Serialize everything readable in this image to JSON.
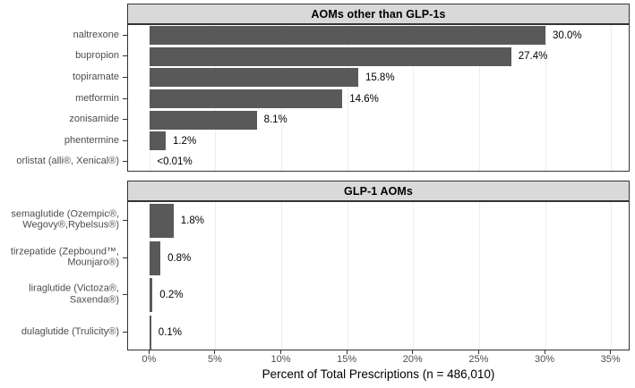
{
  "chart_data": {
    "type": "bar",
    "orientation": "horizontal",
    "xlabel": "Percent of Total Prescriptions (n = 486,010)",
    "xlim": [
      -1.65,
      36.45
    ],
    "x_ticks": [
      0,
      5,
      10,
      15,
      20,
      25,
      30,
      35
    ],
    "x_tick_labels": [
      "0%",
      "5%",
      "10%",
      "15%",
      "20%",
      "25%",
      "30%",
      "35%"
    ],
    "grid": "vertical-major-only",
    "legend": "none",
    "panels": [
      {
        "title": "AOMs other than GLP-1s",
        "categories": [
          "naltrexone",
          "bupropion",
          "topiramate",
          "metformin",
          "zonisamide",
          "phentermine",
          "orlistat (alli®, Xenical®)"
        ],
        "rows": [
          {
            "label_lines": [
              "naltrexone"
            ],
            "value": 30.0,
            "value_label": "30.0%"
          },
          {
            "label_lines": [
              "bupropion"
            ],
            "value": 27.4,
            "value_label": "27.4%"
          },
          {
            "label_lines": [
              "topiramate"
            ],
            "value": 15.8,
            "value_label": "15.8%"
          },
          {
            "label_lines": [
              "metformin"
            ],
            "value": 14.6,
            "value_label": "14.6%"
          },
          {
            "label_lines": [
              "zonisamide"
            ],
            "value": 8.1,
            "value_label": "8.1%"
          },
          {
            "label_lines": [
              "phentermine"
            ],
            "value": 1.2,
            "value_label": "1.2%"
          },
          {
            "label_lines": [
              "orlistat (alli®, Xenical®)"
            ],
            "value": 0.005,
            "value_label": "<0.01%"
          }
        ]
      },
      {
        "title": "GLP-1 AOMs",
        "categories": [
          "semaglutide (Ozempic®, Wegovy®,Rybelsus®)",
          "tirzepatide (Zepbound™, Mounjaro®)",
          "liraglutide (Victoza®, Saxenda®)",
          "dulaglutide (Trulicity®)"
        ],
        "rows": [
          {
            "label_lines": [
              "semaglutide (Ozempic®,",
              "Wegovy®,Rybelsus®)"
            ],
            "value": 1.8,
            "value_label": "1.8%"
          },
          {
            "label_lines": [
              "tirzepatide (Zepbound™,",
              "Mounjaro®)"
            ],
            "value": 0.8,
            "value_label": "0.8%"
          },
          {
            "label_lines": [
              "liraglutide (Victoza®,",
              "Saxenda®)"
            ],
            "value": 0.2,
            "value_label": "0.2%"
          },
          {
            "label_lines": [
              "dulaglutide (Trulicity®)"
            ],
            "value": 0.1,
            "value_label": "0.1%"
          }
        ]
      }
    ],
    "colors": {
      "bar": "#595959",
      "strip_background": "#d9d9d9",
      "panel_border": "#333333",
      "gridline": "#ededed",
      "axis_text": "#4d4d4d",
      "value_text": "#000000"
    }
  }
}
